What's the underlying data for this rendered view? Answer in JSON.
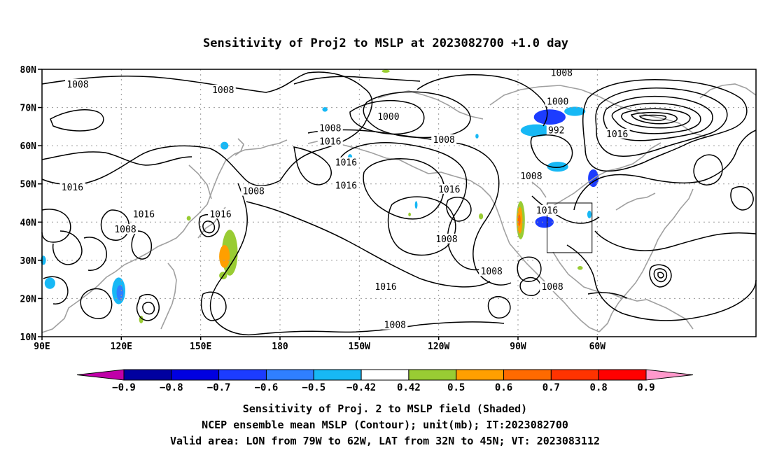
{
  "title": "Sensitivity of Proj2 to MSLP at 2023082700 +1.0 day",
  "axes": {
    "lat_ticks": [
      "80N",
      "70N",
      "60N",
      "50N",
      "40N",
      "30N",
      "20N",
      "10N"
    ],
    "lon_ticks": [
      "90E",
      "120E",
      "150E",
      "180",
      "150W",
      "120W",
      "90W",
      "60W"
    ]
  },
  "contour_labels": [
    {
      "text": "1008",
      "lon": 103.5,
      "lat": 76
    },
    {
      "text": "1008",
      "lon": 158.5,
      "lat": 74.5
    },
    {
      "text": "1000",
      "lon": -139,
      "lat": 67.5
    },
    {
      "text": "1008",
      "lon": -161,
      "lat": 64.5
    },
    {
      "text": "1016",
      "lon": -161,
      "lat": 61
    },
    {
      "text": "1016",
      "lon": -155,
      "lat": 55.5
    },
    {
      "text": "1008",
      "lon": -118,
      "lat": 61.5
    },
    {
      "text": "1008",
      "lon": -73.5,
      "lat": 79
    },
    {
      "text": "1000",
      "lon": -75,
      "lat": 71.5
    },
    {
      "text": "992",
      "lon": -75.5,
      "lat": 64
    },
    {
      "text": "1016",
      "lon": -52.5,
      "lat": 63
    },
    {
      "text": "1008",
      "lon": -85,
      "lat": 52
    },
    {
      "text": "1016",
      "lon": 101.5,
      "lat": 49
    },
    {
      "text": "1016",
      "lon": 128.5,
      "lat": 42
    },
    {
      "text": "1008",
      "lon": 121.5,
      "lat": 38
    },
    {
      "text": "1008",
      "lon": 170,
      "lat": 48
    },
    {
      "text": "1016",
      "lon": 157.5,
      "lat": 42
    },
    {
      "text": "1016",
      "lon": -155,
      "lat": 49.5
    },
    {
      "text": "1016",
      "lon": -116,
      "lat": 48.5
    },
    {
      "text": "1016",
      "lon": -140,
      "lat": 23
    },
    {
      "text": "1008",
      "lon": -117,
      "lat": 35.5
    },
    {
      "text": "1008",
      "lon": -100,
      "lat": 27
    },
    {
      "text": "1016",
      "lon": -79,
      "lat": 43
    },
    {
      "text": "1008",
      "lon": -77,
      "lat": 23
    },
    {
      "text": "1008",
      "lon": -136.5,
      "lat": 13
    }
  ],
  "sensitivity_box": {
    "lon_min": -79,
    "lon_max": -62,
    "lat_min": 32,
    "lat_max": 45
  },
  "shaded_regions": [
    {
      "lon": -78,
      "lat": 67.5,
      "rx": 6,
      "ry": 2,
      "level": "-0.7"
    },
    {
      "lon": -83,
      "lat": 64,
      "rx": 6,
      "ry": 1.6,
      "level": "-0.5"
    },
    {
      "lon": -68.5,
      "lat": 69,
      "rx": 4,
      "ry": 1.2,
      "level": "-0.5"
    },
    {
      "lon": -75,
      "lat": 54.5,
      "rx": 4,
      "ry": 1.3,
      "level": "-0.5"
    },
    {
      "lon": -61.5,
      "lat": 51.5,
      "rx": 2,
      "ry": 2.3,
      "level": "-0.7"
    },
    {
      "lon": -80,
      "lat": 40,
      "rx": 3.5,
      "ry": 1.5,
      "level": "-0.7"
    },
    {
      "lon": -63,
      "lat": 42,
      "rx": 0.8,
      "ry": 1,
      "level": "-0.5"
    },
    {
      "lon": -89,
      "lat": 40.5,
      "rx": 1.6,
      "ry": 5,
      "level": "0.5"
    },
    {
      "lon": -89.3,
      "lat": 40.5,
      "rx": 1.0,
      "ry": 3.5,
      "level": "0.6"
    },
    {
      "lon": -89.5,
      "lat": 40.5,
      "rx": 0.5,
      "ry": 1.5,
      "level": "0.7"
    },
    {
      "lon": -104,
      "lat": 41.5,
      "rx": 0.8,
      "ry": 0.8,
      "level": "0.5"
    },
    {
      "lon": -163,
      "lat": 69.5,
      "rx": 1,
      "ry": 0.6,
      "level": "-0.5"
    },
    {
      "lon": -105.5,
      "lat": 62.5,
      "rx": 0.6,
      "ry": 0.6,
      "level": "-0.5"
    },
    {
      "lon": -153.5,
      "lat": 57,
      "rx": 0.8,
      "ry": 0.8,
      "level": "-0.5"
    },
    {
      "lon": -128.5,
      "lat": 44.5,
      "rx": 0.5,
      "ry": 1,
      "level": "-0.5"
    },
    {
      "lon": -131,
      "lat": 42,
      "rx": 0.5,
      "ry": 0.5,
      "level": "0.5"
    },
    {
      "lon": 159,
      "lat": 60,
      "rx": 1.5,
      "ry": 1,
      "level": "-0.5"
    },
    {
      "lon": 161,
      "lat": 32,
      "rx": 3,
      "ry": 6,
      "level": "0.5"
    },
    {
      "lon": 159,
      "lat": 31,
      "rx": 2,
      "ry": 3,
      "level": "0.6"
    },
    {
      "lon": 158.5,
      "lat": 26,
      "rx": 1.5,
      "ry": 1,
      "level": "0.5"
    },
    {
      "lon": 119,
      "lat": 22,
      "rx": 2.5,
      "ry": 3.5,
      "level": "-0.5"
    },
    {
      "lon": 119.5,
      "lat": 21.5,
      "rx": 1.3,
      "ry": 2,
      "level": "-0.6"
    },
    {
      "lon": 93,
      "lat": 24,
      "rx": 2,
      "ry": 1.5,
      "level": "-0.5"
    },
    {
      "lon": 90.5,
      "lat": 30,
      "rx": 1,
      "ry": 1.2,
      "level": "-0.5"
    },
    {
      "lon": 127.5,
      "lat": 14.5,
      "rx": 0.8,
      "ry": 1,
      "level": "0.5"
    },
    {
      "lon": 145.5,
      "lat": 41,
      "rx": 0.8,
      "ry": 0.6,
      "level": "0.5"
    },
    {
      "lon": -66.5,
      "lat": 28,
      "rx": 1,
      "ry": 0.5,
      "level": "0.5"
    },
    {
      "lon": -140,
      "lat": 79.5,
      "rx": 1.5,
      "ry": 0.4,
      "level": "0.5"
    }
  ],
  "colorbar": {
    "levels": [
      "-0.9",
      "-0.8",
      "-0.7",
      "-0.6",
      "-0.5",
      "-0.42",
      "0.42",
      "0.5",
      "0.6",
      "0.7",
      "0.8",
      "0.9"
    ],
    "colors": [
      "#c000a8",
      "#0000a0",
      "#0000e0",
      "#1c3cff",
      "#2f7fff",
      "#17b8f5",
      "#ffffff",
      "#99cc33",
      "#ff9f00",
      "#ff6a00",
      "#ff3300",
      "#ff0000",
      "#ff99cc"
    ]
  },
  "captions": [
    "Sensitivity of Proj. 2 to MSLP field (Shaded)",
    "NCEP ensemble mean MSLP (Contour); unit(mb); IT:2023082700",
    "Valid area: LON from 79W to 62W, LAT from 32N to 45N; VT: 2023083112"
  ]
}
